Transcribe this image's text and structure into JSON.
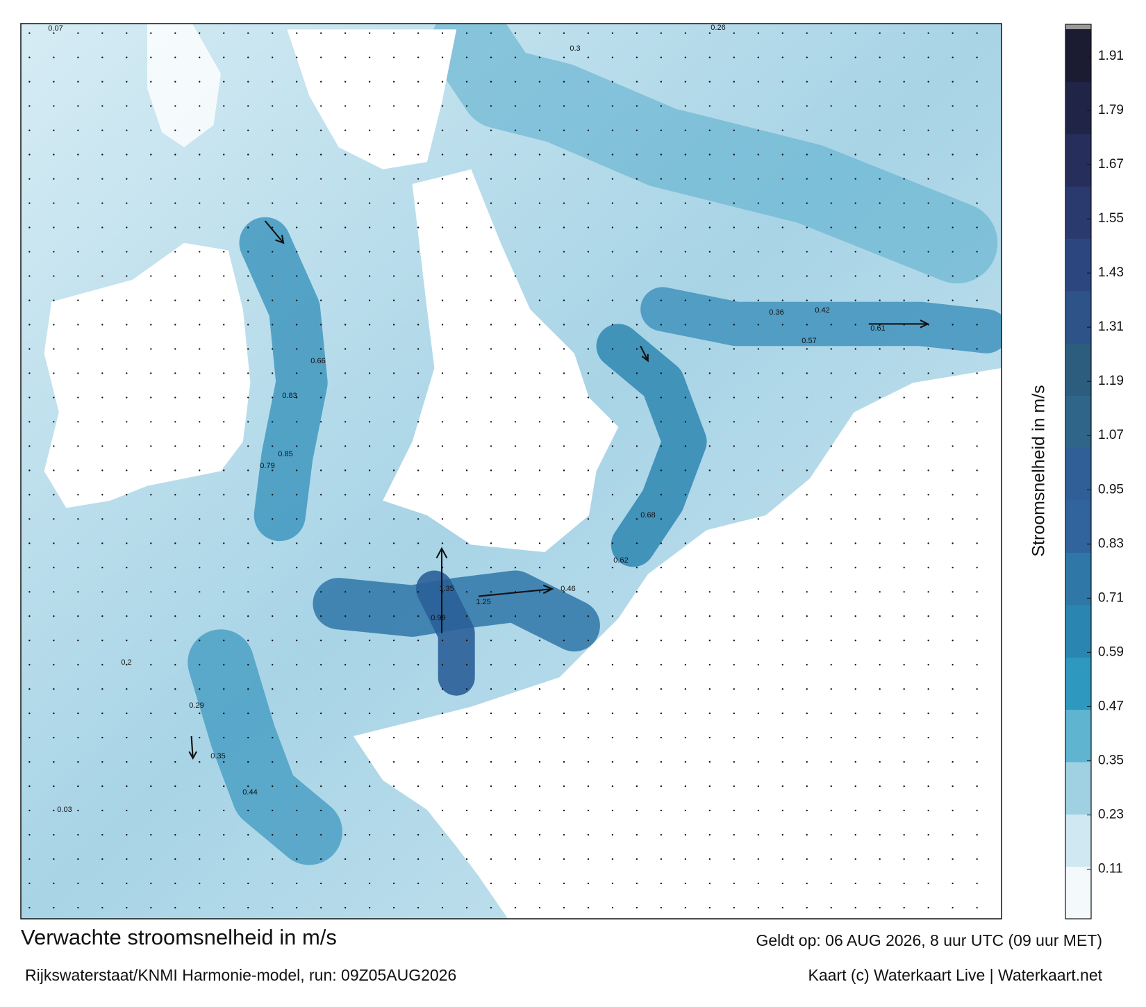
{
  "title": "Verwachte stroomsnelheid in m/s",
  "subtitle": "Rijkswaterstaat/KNMI Harmonie-model, run: 09Z05AUG2026",
  "valid_time": "Geldt op: 06 AUG 2026, 8 uur UTC (09 uur MET)",
  "credit": "Kaart (c) Waterkaart Live | Waterkaart.net",
  "colorbar": {
    "label": "Stroomsnelheid in m/s",
    "range": [
      0,
      1.97
    ],
    "ticks": [
      0.11,
      0.23,
      0.35,
      0.47,
      0.59,
      0.71,
      0.83,
      0.95,
      1.07,
      1.19,
      1.31,
      1.43,
      1.55,
      1.67,
      1.79,
      1.91
    ],
    "colors": [
      "#f4fafc",
      "#cfe8f1",
      "#9fd1e3",
      "#5fb4d0",
      "#2f98bf",
      "#2a86b0",
      "#2f77a6",
      "#31649c",
      "#305f97",
      "#2f6589",
      "#2c5d7e",
      "#2e5389",
      "#2c4780",
      "#2a3a6f",
      "#262e5c",
      "#202447",
      "#1b1b31"
    ]
  },
  "current_labels": [
    "1.35",
    "1.25",
    "0.99",
    "0.85",
    "0.79",
    "0.66",
    "0.83",
    "0.61",
    "0.57",
    "0.68",
    "0.62",
    "0.46",
    "0.3",
    "0.26",
    "0.42",
    "0.36",
    "0.35",
    "0.44",
    "0.29",
    "0.2",
    "0.03",
    "0.07"
  ]
}
